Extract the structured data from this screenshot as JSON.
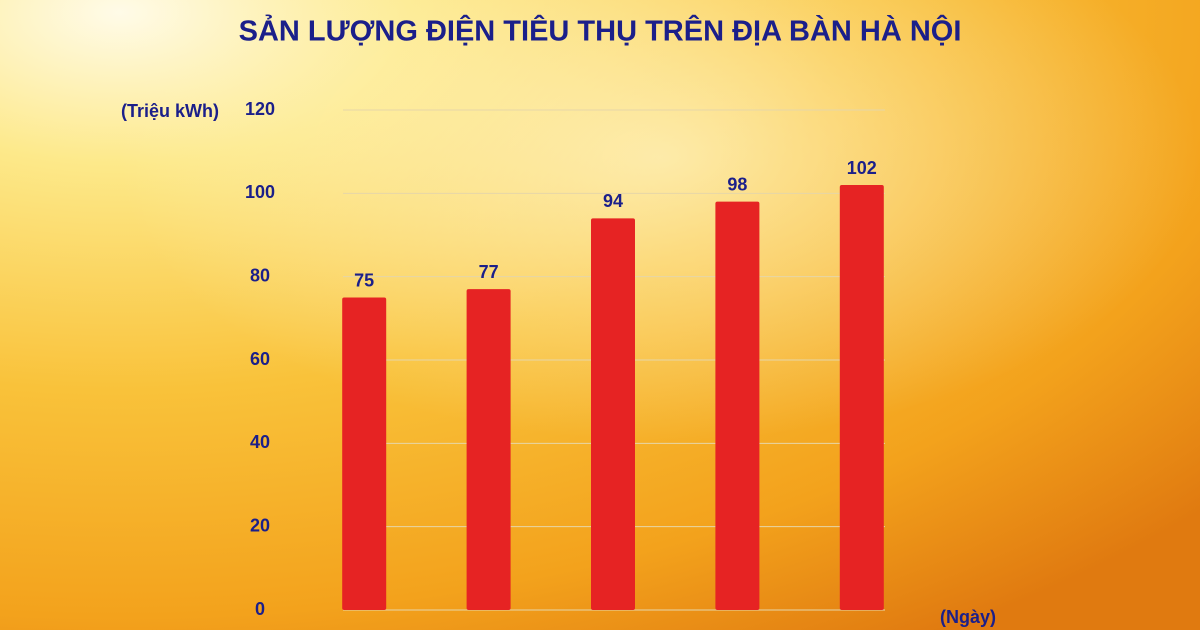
{
  "chart_data": {
    "type": "bar",
    "title": "SẢN LƯỢNG ĐIỆN TIÊU THỤ TRÊN ĐỊA BÀN HÀ NỘI",
    "y_label": "(Triệu kWh)",
    "x_label": "(Ngày)",
    "categories": [
      null,
      null,
      null,
      null,
      null
    ],
    "values": [
      75,
      77,
      94,
      98,
      102
    ],
    "color": "#e62323",
    "ylim": [
      0,
      120
    ],
    "yticks": [
      0,
      20,
      40,
      60,
      80,
      100,
      120
    ],
    "grid": true
  }
}
